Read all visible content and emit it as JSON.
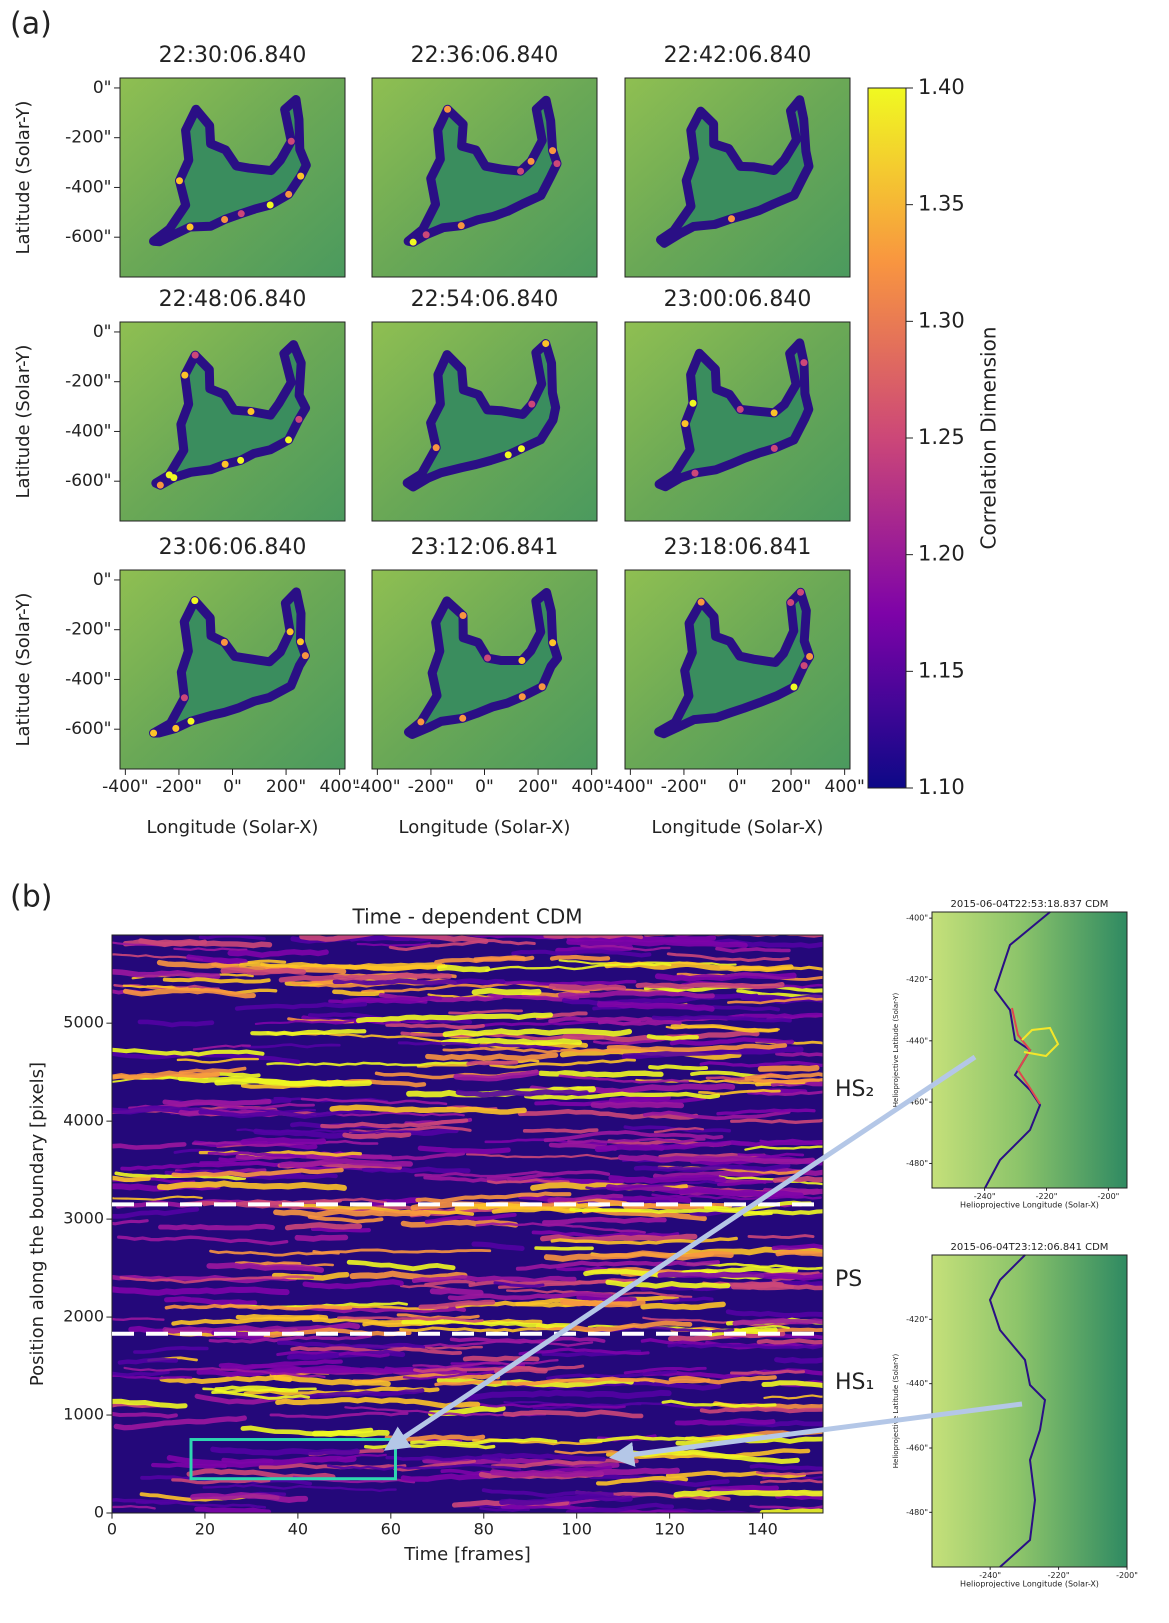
{
  "chart_data": [
    {
      "type": "image-grid",
      "panel_label": "(a)",
      "titles": [
        "22:30:06.840",
        "22:36:06.840",
        "22:42:06.840",
        "22:48:06.840",
        "22:54:06.840",
        "23:00:06.840",
        "23:06:06.840",
        "23:12:06.841",
        "23:18:06.841"
      ],
      "xlabel": "Longitude (Solar-X)",
      "ylabel": "Latitude (Solar-Y)",
      "xlim": [
        -420,
        420
      ],
      "ylim": [
        -760,
        40
      ],
      "xticks": [
        {
          "value": -400,
          "label": "-400\""
        },
        {
          "value": -200,
          "label": "-200\""
        },
        {
          "value": 0,
          "label": "0\""
        },
        {
          "value": 200,
          "label": "200\""
        },
        {
          "value": 400,
          "label": "400\""
        }
      ],
      "yticks": [
        {
          "value": 0,
          "label": "0\""
        },
        {
          "value": -200,
          "label": "-200\""
        },
        {
          "value": -400,
          "label": "-400\""
        },
        {
          "value": -600,
          "label": "-600\""
        }
      ],
      "colorbar": {
        "label": "Correlation Dimension",
        "lim": [
          1.1,
          1.4
        ],
        "ticks": [
          {
            "value": 1.1,
            "label": "1.10"
          },
          1.15,
          {
            "value": 1.2,
            "label": "1.20"
          },
          1.25,
          {
            "value": 1.3,
            "label": "1.30"
          },
          1.35,
          {
            "value": 1.4,
            "label": "1.40"
          }
        ]
      }
    },
    {
      "type": "heatmap",
      "panel_label": "(b)",
      "title": "Time - dependent CDM",
      "xlabel": "Time [frames]",
      "ylabel": "Position along the boundary [pixels]",
      "xlim": [
        0,
        153
      ],
      "ylim": [
        0,
        5900
      ],
      "xticks": [
        0,
        20,
        40,
        60,
        80,
        100,
        120,
        140
      ],
      "yticks": [
        0,
        1000,
        2000,
        3000,
        4000,
        5000
      ],
      "boundaries": [
        3150,
        1830
      ],
      "region_labels": [
        "HS₂",
        "PS",
        "HS₁"
      ],
      "highlight_box": {
        "x": [
          17,
          61
        ],
        "y": [
          350,
          750
        ],
        "color": "#2ed6b0"
      }
    },
    {
      "type": "image",
      "title": "2015-06-04T22:53:18.837 CDM",
      "xlabel": "Helioprojective Longitude (Solar-X)",
      "ylabel": "Helioprojective Latitude (Solar-Y)",
      "xlim": [
        -257,
        -194
      ],
      "ylim": [
        -488,
        -398
      ],
      "xticks": [
        {
          "value": -240,
          "label": "-240\""
        },
        {
          "value": -220,
          "label": "-220\""
        },
        {
          "value": -200,
          "label": "-200\""
        }
      ],
      "yticks": [
        {
          "value": -400,
          "label": "-400\""
        },
        {
          "value": -420,
          "label": "-420\""
        },
        {
          "value": -440,
          "label": "-440\""
        },
        {
          "value": -460,
          "label": "-460\""
        },
        {
          "value": -480,
          "label": "-480\""
        }
      ]
    },
    {
      "type": "image",
      "title": "2015-06-04T23:12:06.841 CDM",
      "xlabel": "Helioprojective Longitude (Solar-X)",
      "ylabel": "Helioprojective Latitude (Solar-Y)",
      "xlim": [
        -257,
        -200
      ],
      "ylim": [
        -497,
        -400
      ],
      "xticks": [
        {
          "value": -240,
          "label": "-240\""
        },
        {
          "value": -220,
          "label": "-220\""
        },
        {
          "value": -200,
          "label": "-200\""
        }
      ],
      "yticks": [
        {
          "value": -420,
          "label": "-420\""
        },
        {
          "value": -440,
          "label": "-440\""
        },
        {
          "value": -460,
          "label": "-460\""
        },
        {
          "value": -480,
          "label": "-480\""
        }
      ]
    }
  ]
}
